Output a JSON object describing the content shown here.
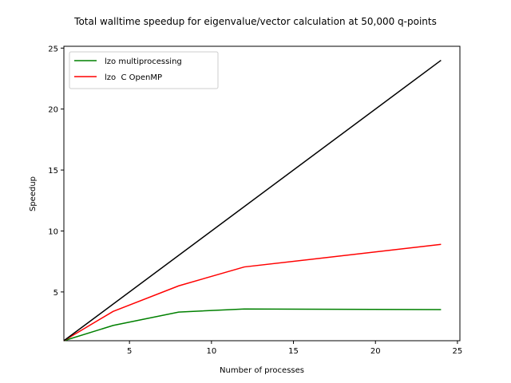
{
  "chart_data": {
    "type": "line",
    "title": "Total walltime speedup for eigenvalue/vector calculation at 50,000 q-points",
    "xlabel": "Number of processes",
    "ylabel": "Speedup",
    "xlim": [
      1,
      25.15
    ],
    "ylim": [
      1,
      25.15
    ],
    "xticks": [
      5,
      10,
      15,
      20,
      25
    ],
    "yticks": [
      5,
      10,
      15,
      20,
      25
    ],
    "grid": false,
    "legend_position": "upper-left",
    "series": [
      {
        "name": "lzo multiprocessing",
        "color": "#008000",
        "x": [
          1,
          4,
          8,
          12,
          24
        ],
        "y": [
          1.0,
          2.25,
          3.35,
          3.6,
          3.55
        ]
      },
      {
        "name": "lzo  C OpenMP",
        "color": "#ff0000",
        "x": [
          1,
          4,
          8,
          12,
          24
        ],
        "y": [
          1.0,
          3.4,
          5.5,
          7.05,
          8.9
        ]
      },
      {
        "color": "#000000",
        "x": [
          1,
          24
        ],
        "y": [
          1,
          24
        ]
      }
    ]
  }
}
